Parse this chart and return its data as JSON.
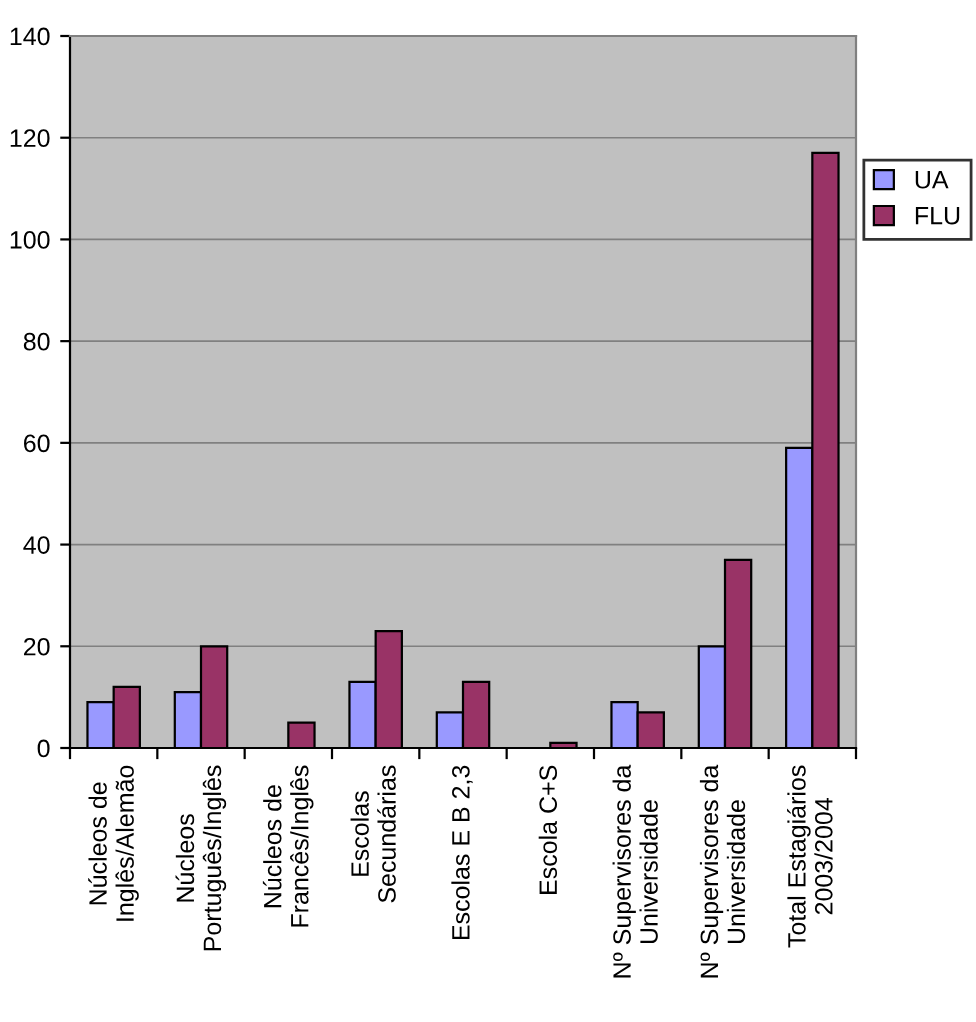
{
  "chart_data": {
    "type": "bar",
    "categories": [
      "Núcleos de\nInglês/Alemão",
      "Núcleos\nPortuguês/Inglês",
      "Núcleos de\nFrancês/Inglês",
      "Escolas\nSecundárias",
      "Escolas E B 2,3",
      "Escola C+S",
      "Nº Supervisores da\nUniversidade",
      "Nº Supervisores da\nUniversidade",
      "Total Estagiários\n2003/2004"
    ],
    "series": [
      {
        "name": "UA",
        "color": "#9999ff",
        "values": [
          9,
          11,
          null,
          13,
          7,
          null,
          9,
          20,
          59
        ]
      },
      {
        "name": "FLU",
        "color": "#993366",
        "values": [
          12,
          20,
          5,
          23,
          13,
          1,
          7,
          37,
          117
        ]
      }
    ],
    "ylim": [
      0,
      140
    ],
    "yticks": [
      0,
      20,
      40,
      60,
      80,
      100,
      120,
      140
    ],
    "grid": "y",
    "legend": "right"
  }
}
